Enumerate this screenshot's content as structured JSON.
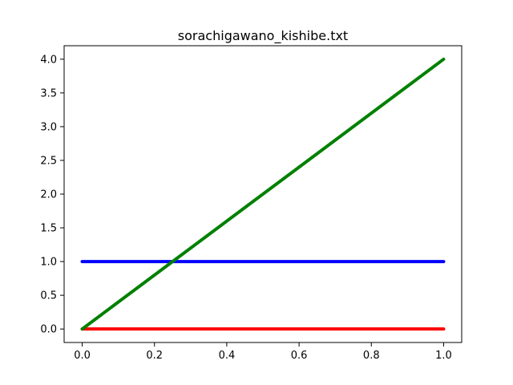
{
  "chart_data": {
    "type": "line",
    "title": "sorachigawano_kishibe.txt",
    "xlabel": "",
    "ylabel": "",
    "xlim": [
      -0.05,
      1.05
    ],
    "ylim": [
      -0.2,
      4.2
    ],
    "grid": false,
    "x_ticks": [
      {
        "value": 0.0,
        "label": "0.0"
      },
      {
        "value": 0.2,
        "label": "0.2"
      },
      {
        "value": 0.4,
        "label": "0.4"
      },
      {
        "value": 0.6,
        "label": "0.6"
      },
      {
        "value": 0.8,
        "label": "0.8"
      },
      {
        "value": 1.0,
        "label": "1.0"
      }
    ],
    "y_ticks": [
      {
        "value": 0.0,
        "label": "0.0"
      },
      {
        "value": 0.5,
        "label": "0.5"
      },
      {
        "value": 1.0,
        "label": "1.0"
      },
      {
        "value": 1.5,
        "label": "1.5"
      },
      {
        "value": 2.0,
        "label": "2.0"
      },
      {
        "value": 2.5,
        "label": "2.5"
      },
      {
        "value": 3.0,
        "label": "3.0"
      },
      {
        "value": 3.5,
        "label": "3.5"
      },
      {
        "value": 4.0,
        "label": "4.0"
      }
    ],
    "series": [
      {
        "color": "#0000ff",
        "x": [
          0,
          1
        ],
        "y": [
          1,
          1
        ]
      },
      {
        "color": "#ff0000",
        "x": [
          0,
          1
        ],
        "y": [
          0,
          0
        ]
      },
      {
        "color": "#008000",
        "x": [
          0,
          1
        ],
        "y": [
          0,
          4
        ]
      }
    ]
  }
}
